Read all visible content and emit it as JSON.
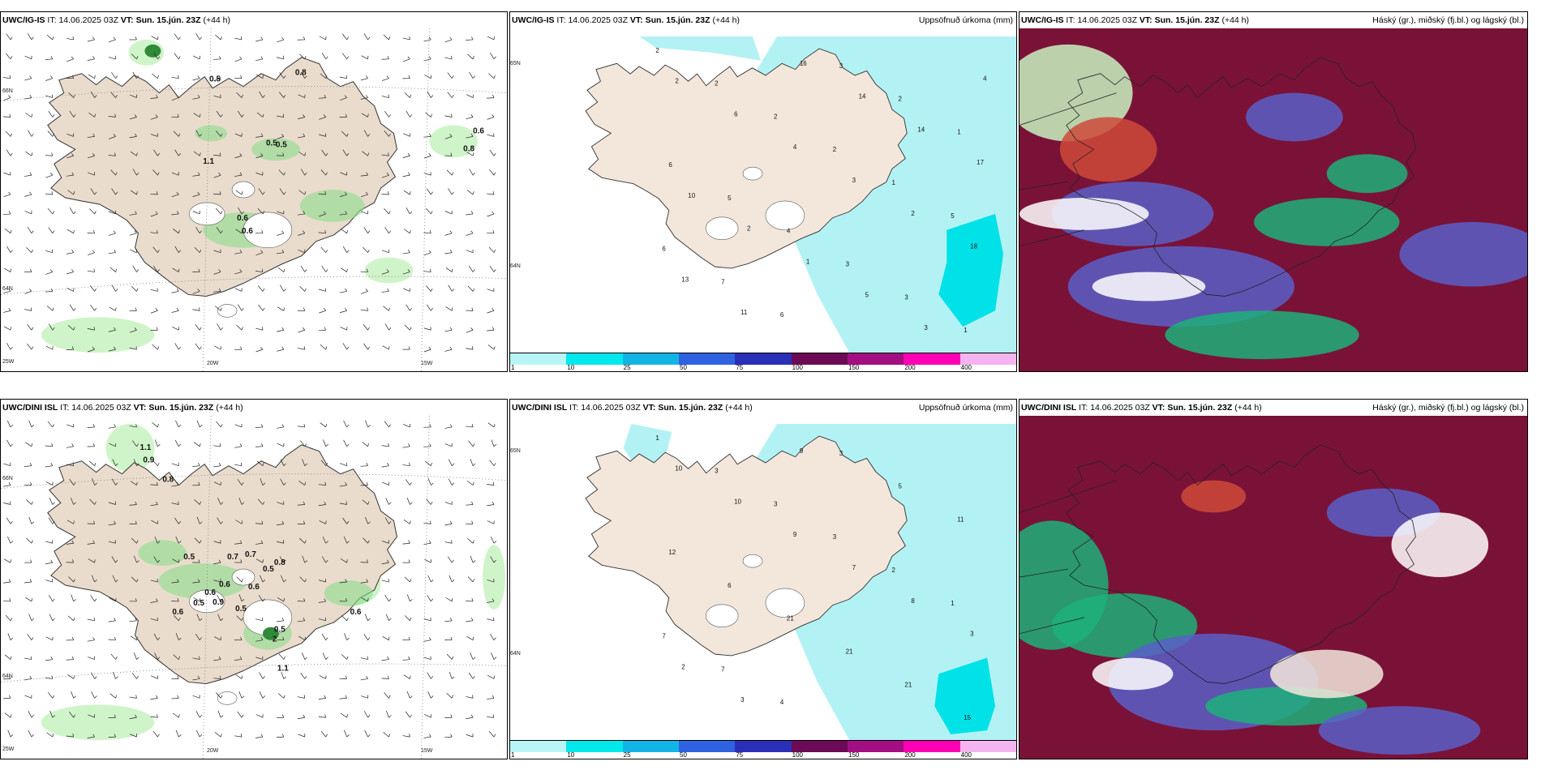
{
  "panels": [
    {
      "model": "UWC/IG-IS",
      "it_label": "IT:",
      "it_value": "14.06.2025 03Z",
      "vt_label": "VT:",
      "vt_value": "Sun. 15.jún. 23Z",
      "lead": "(+44 h)",
      "right_title": "",
      "grid_labels": [
        "66N",
        "64N",
        "25W",
        "20W",
        "15W"
      ],
      "values": [
        "0.5",
        "0.8",
        "0.6",
        "0.5",
        "0.5",
        "1.1",
        "0.8",
        "0.6",
        "0.6"
      ]
    },
    {
      "model": "UWC/IG-IS",
      "it_label": "IT:",
      "it_value": "14.06.2025 03Z",
      "vt_label": "VT:",
      "vt_value": "Sun. 15.jún. 23Z",
      "lead": "(+44 h)",
      "right_title": "Uppsöfnuð úrkoma (mm)",
      "grid_labels": [
        "65N",
        "64N"
      ],
      "values": [
        "2",
        "2",
        "2",
        "2",
        "1",
        "5",
        "6",
        "7",
        "6",
        "3",
        "2",
        "1",
        "6",
        "5",
        "4",
        "3",
        "3",
        "1",
        "2",
        "6",
        "4",
        "3",
        "2",
        "18",
        "13",
        "11",
        "16",
        "14",
        "14",
        "17",
        "10",
        "2",
        "1",
        "5",
        "3",
        "4"
      ]
    },
    {
      "model": "UWC/IG-IS",
      "it_label": "IT:",
      "it_value": "14.06.2025 03Z",
      "vt_label": "VT:",
      "vt_value": "Sun. 15.jún. 23Z",
      "lead": "(+44 h)",
      "right_title": "Háský (gr.), miðský (fj.bl.) og lágský (bl.)",
      "grid_labels": [],
      "values": []
    },
    {
      "model": "UWC/DINI ISL",
      "it_label": "IT:",
      "it_value": "14.06.2025 03Z",
      "vt_label": "VT:",
      "vt_value": "Sun. 15.jún. 23Z",
      "lead": "(+44 h)",
      "right_title": "",
      "grid_labels": [
        "66N",
        "64N",
        "25W",
        "20W",
        "15W"
      ],
      "values": [
        "1.1",
        "0.9",
        "0.8",
        "0.5",
        "0.7",
        "0.7",
        "0.5",
        "0.8",
        "0.6",
        "0.6",
        "0.5",
        "0.9",
        "0.6",
        "0.6",
        "0.5",
        "2",
        "1.1",
        "0.6",
        "0.5"
      ]
    },
    {
      "model": "UWC/DINI ISL",
      "it_label": "IT:",
      "it_value": "14.06.2025 03Z",
      "vt_label": "VT:",
      "vt_value": "Sun. 15.jún. 23Z",
      "lead": "(+44 h)",
      "right_title": "Uppsöfnuð úrkoma (mm)",
      "grid_labels": [
        "65N",
        "64N"
      ],
      "values": [
        "1",
        "3",
        "3",
        "3",
        "2",
        "1",
        "7",
        "7",
        "4",
        "3",
        "5",
        "11",
        "12",
        "6",
        "21",
        "21",
        "21",
        "15",
        "10",
        "10",
        "9",
        "7",
        "8",
        "3",
        "2",
        "3",
        "9"
      ]
    },
    {
      "model": "UWC/DINI ISL",
      "it_label": "IT:",
      "it_value": "14.06.2025 03Z",
      "vt_label": "VT:",
      "vt_value": "Sun. 15.jún. 23Z",
      "lead": "(+44 h)",
      "right_title": "Háský (gr.), miðský (fj.bl.) og lágský (bl.)",
      "grid_labels": [],
      "values": []
    }
  ],
  "precip_scale": {
    "colors": [
      "#b9f5f7",
      "#00e8ec",
      "#12b4e6",
      "#2f62e0",
      "#2a2fb8",
      "#6d0a55",
      "#a30f82",
      "#ff00b4",
      "#f5b4f0"
    ],
    "labels": [
      "1",
      "10",
      "25",
      "50",
      "75",
      "100",
      "150",
      "200",
      "400"
    ]
  },
  "colors": {
    "land": "#f3e7dc",
    "land_wind": "#eadccd",
    "green_light": "#c8f2c0",
    "green_mid": "#8cdc8c",
    "green_dark": "#2f8a3a",
    "precip_light": "#b3f2f4",
    "precip_mid": "#00e2e8",
    "cloud_high": "#7a1238",
    "cloud_mid": "#5a5fc8",
    "cloud_low": "#1db07a"
  }
}
